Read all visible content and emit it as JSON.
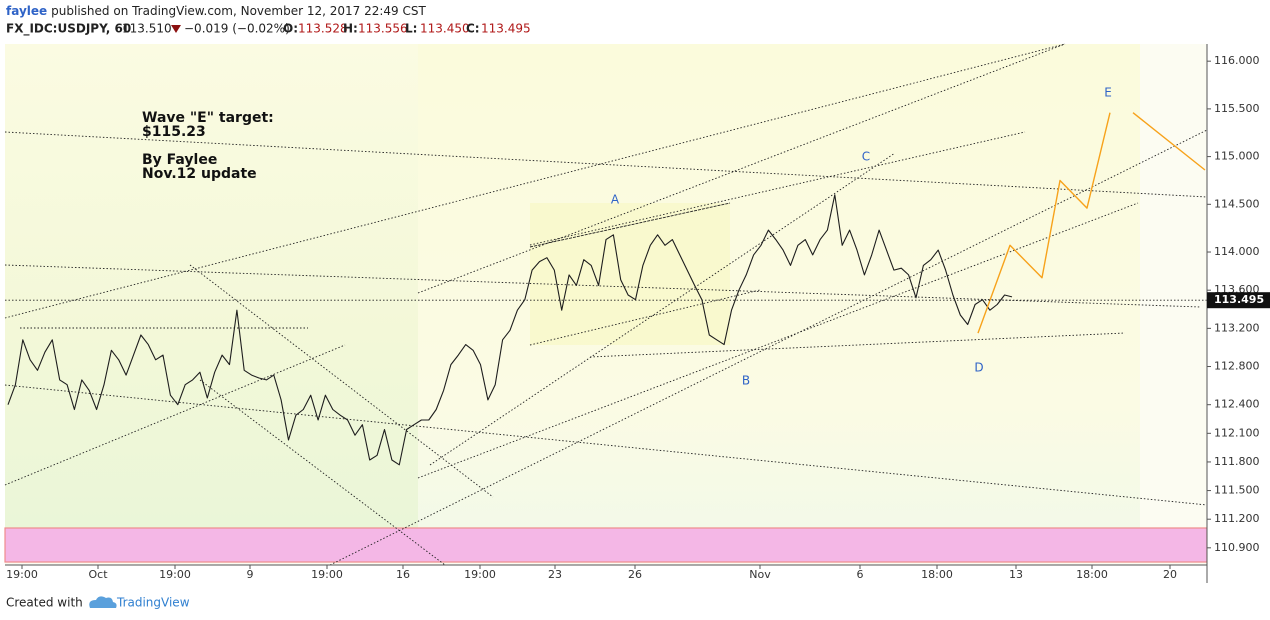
{
  "header": {
    "user": "faylee",
    "published": "published on TradingView.com, November 12, 2017 22:49 CST",
    "symbol": "FX_IDC:USDJPY, 60",
    "price": "113.510",
    "change": "−0.019 (−0.02%)",
    "ohlc": [
      {
        "label": "O:",
        "value": "113.528"
      },
      {
        "label": "H:",
        "value": "113.556"
      },
      {
        "label": "L:",
        "value": "113.450"
      },
      {
        "label": "C:",
        "value": "113.495"
      }
    ]
  },
  "chart_data": {
    "type": "line",
    "grid": false,
    "ylim": [
      110.72,
      116.18
    ],
    "yticks": [
      {
        "value": 116,
        "label": "116.000"
      },
      {
        "value": 115.5,
        "label": "115.500"
      },
      {
        "value": 115,
        "label": "115.000"
      },
      {
        "value": 114.5,
        "label": "114.500"
      },
      {
        "value": 114,
        "label": "114.000"
      },
      {
        "value": 113.6,
        "label": "113.600"
      },
      {
        "value": 113.2,
        "label": "113.200"
      },
      {
        "value": 112.8,
        "label": "112.800"
      },
      {
        "value": 112.4,
        "label": "112.400"
      },
      {
        "value": 112.1,
        "label": "112.100"
      },
      {
        "value": 111.8,
        "label": "111.800"
      },
      {
        "value": 111.5,
        "label": "111.500"
      },
      {
        "value": 111.2,
        "label": "111.200"
      },
      {
        "value": 110.9,
        "label": "110.900"
      }
    ],
    "xtick_labels": [
      "19:00",
      "Oct",
      "19:00",
      "9",
      "19:00",
      "16",
      "19:00",
      "23",
      "26",
      "Nov",
      "6",
      "18:00",
      "13",
      "18:00",
      "20"
    ],
    "last_price": 113.495,
    "annotations": [
      "Wave \"E\" target:",
      "$115.23",
      "By Faylee",
      "Nov.12 update"
    ],
    "wave_labels": [
      "A",
      "B",
      "C",
      "D",
      "E"
    ],
    "series": [
      {
        "color": "#1e1e1e",
        "values": [
          112.4,
          112.61,
          113.08,
          112.87,
          112.76,
          112.95,
          113.08,
          112.66,
          112.61,
          112.35,
          112.66,
          112.55,
          112.35,
          112.61,
          112.97,
          112.87,
          112.71,
          112.92,
          113.13,
          113.03,
          112.87,
          112.92,
          112.5,
          112.4,
          112.61,
          112.66,
          112.74,
          112.47,
          112.74,
          112.92,
          112.82,
          113.39,
          112.76,
          112.71,
          112.68,
          112.66,
          112.71,
          112.45,
          112.03,
          112.29,
          112.35,
          112.5,
          112.24,
          112.5,
          112.35,
          112.29,
          112.24,
          112.08,
          112.19,
          111.82,
          111.87,
          112.14,
          111.82,
          111.77,
          112.14,
          112.19,
          112.24,
          112.24,
          112.35,
          112.55,
          112.82,
          112.92,
          113.03,
          112.97,
          112.82,
          112.45,
          112.61,
          113.08,
          113.18,
          113.39,
          113.5,
          113.81,
          113.9,
          113.94,
          113.81,
          113.39,
          113.76,
          113.65,
          113.92,
          113.86,
          113.65,
          114.13,
          114.18,
          113.71,
          113.55,
          113.5,
          113.86,
          114.07,
          114.18,
          114.07,
          114.13,
          113.97,
          113.81,
          113.65,
          113.5,
          113.13,
          113.08,
          113.03,
          113.39,
          113.6,
          113.76,
          113.97,
          114.07,
          114.23,
          114.13,
          114.02,
          113.86,
          114.07,
          114.13,
          113.97,
          114.13,
          114.23,
          114.6,
          114.07,
          114.23,
          114.02,
          113.76,
          113.97,
          114.23,
          114.02,
          113.81,
          113.83,
          113.76,
          113.52,
          113.86,
          113.92,
          114.02,
          113.81,
          113.55,
          113.34,
          113.24,
          113.45,
          113.5,
          113.39,
          113.45,
          113.55,
          113.53
        ]
      },
      {
        "color": "#f7a21b",
        "values": [
          113.15,
          114.07,
          113.73,
          114.75,
          114.46,
          115.46,
          null,
          115.46,
          114.86
        ]
      }
    ]
  },
  "footer": {
    "created": "Created with",
    "brand": "TradingView"
  }
}
